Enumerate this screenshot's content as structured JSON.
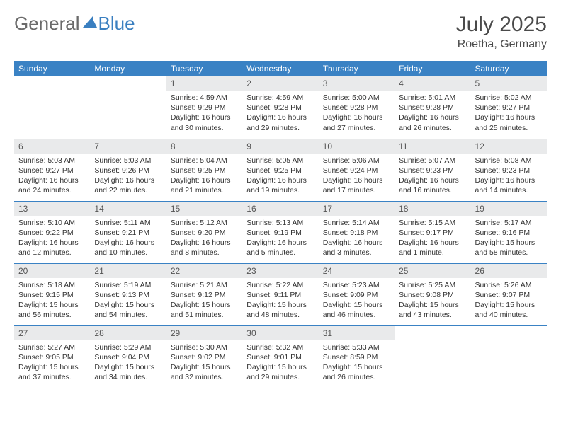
{
  "brand": {
    "part1": "General",
    "part2": "Blue"
  },
  "title": "July 2025",
  "location": "Roetha, Germany",
  "colors": {
    "header_bg": "#3a82c4",
    "daynum_bg": "#e9eaeb",
    "border": "#3a82c4"
  },
  "dayNames": [
    "Sunday",
    "Monday",
    "Tuesday",
    "Wednesday",
    "Thursday",
    "Friday",
    "Saturday"
  ],
  "weeks": [
    [
      null,
      null,
      {
        "n": "1",
        "sr": "4:59 AM",
        "ss": "9:29 PM",
        "dl": "16 hours and 30 minutes."
      },
      {
        "n": "2",
        "sr": "4:59 AM",
        "ss": "9:28 PM",
        "dl": "16 hours and 29 minutes."
      },
      {
        "n": "3",
        "sr": "5:00 AM",
        "ss": "9:28 PM",
        "dl": "16 hours and 27 minutes."
      },
      {
        "n": "4",
        "sr": "5:01 AM",
        "ss": "9:28 PM",
        "dl": "16 hours and 26 minutes."
      },
      {
        "n": "5",
        "sr": "5:02 AM",
        "ss": "9:27 PM",
        "dl": "16 hours and 25 minutes."
      }
    ],
    [
      {
        "n": "6",
        "sr": "5:03 AM",
        "ss": "9:27 PM",
        "dl": "16 hours and 24 minutes."
      },
      {
        "n": "7",
        "sr": "5:03 AM",
        "ss": "9:26 PM",
        "dl": "16 hours and 22 minutes."
      },
      {
        "n": "8",
        "sr": "5:04 AM",
        "ss": "9:25 PM",
        "dl": "16 hours and 21 minutes."
      },
      {
        "n": "9",
        "sr": "5:05 AM",
        "ss": "9:25 PM",
        "dl": "16 hours and 19 minutes."
      },
      {
        "n": "10",
        "sr": "5:06 AM",
        "ss": "9:24 PM",
        "dl": "16 hours and 17 minutes."
      },
      {
        "n": "11",
        "sr": "5:07 AM",
        "ss": "9:23 PM",
        "dl": "16 hours and 16 minutes."
      },
      {
        "n": "12",
        "sr": "5:08 AM",
        "ss": "9:23 PM",
        "dl": "16 hours and 14 minutes."
      }
    ],
    [
      {
        "n": "13",
        "sr": "5:10 AM",
        "ss": "9:22 PM",
        "dl": "16 hours and 12 minutes."
      },
      {
        "n": "14",
        "sr": "5:11 AM",
        "ss": "9:21 PM",
        "dl": "16 hours and 10 minutes."
      },
      {
        "n": "15",
        "sr": "5:12 AM",
        "ss": "9:20 PM",
        "dl": "16 hours and 8 minutes."
      },
      {
        "n": "16",
        "sr": "5:13 AM",
        "ss": "9:19 PM",
        "dl": "16 hours and 5 minutes."
      },
      {
        "n": "17",
        "sr": "5:14 AM",
        "ss": "9:18 PM",
        "dl": "16 hours and 3 minutes."
      },
      {
        "n": "18",
        "sr": "5:15 AM",
        "ss": "9:17 PM",
        "dl": "16 hours and 1 minute."
      },
      {
        "n": "19",
        "sr": "5:17 AM",
        "ss": "9:16 PM",
        "dl": "15 hours and 58 minutes."
      }
    ],
    [
      {
        "n": "20",
        "sr": "5:18 AM",
        "ss": "9:15 PM",
        "dl": "15 hours and 56 minutes."
      },
      {
        "n": "21",
        "sr": "5:19 AM",
        "ss": "9:13 PM",
        "dl": "15 hours and 54 minutes."
      },
      {
        "n": "22",
        "sr": "5:21 AM",
        "ss": "9:12 PM",
        "dl": "15 hours and 51 minutes."
      },
      {
        "n": "23",
        "sr": "5:22 AM",
        "ss": "9:11 PM",
        "dl": "15 hours and 48 minutes."
      },
      {
        "n": "24",
        "sr": "5:23 AM",
        "ss": "9:09 PM",
        "dl": "15 hours and 46 minutes."
      },
      {
        "n": "25",
        "sr": "5:25 AM",
        "ss": "9:08 PM",
        "dl": "15 hours and 43 minutes."
      },
      {
        "n": "26",
        "sr": "5:26 AM",
        "ss": "9:07 PM",
        "dl": "15 hours and 40 minutes."
      }
    ],
    [
      {
        "n": "27",
        "sr": "5:27 AM",
        "ss": "9:05 PM",
        "dl": "15 hours and 37 minutes."
      },
      {
        "n": "28",
        "sr": "5:29 AM",
        "ss": "9:04 PM",
        "dl": "15 hours and 34 minutes."
      },
      {
        "n": "29",
        "sr": "5:30 AM",
        "ss": "9:02 PM",
        "dl": "15 hours and 32 minutes."
      },
      {
        "n": "30",
        "sr": "5:32 AM",
        "ss": "9:01 PM",
        "dl": "15 hours and 29 minutes."
      },
      {
        "n": "31",
        "sr": "5:33 AM",
        "ss": "8:59 PM",
        "dl": "15 hours and 26 minutes."
      },
      null,
      null
    ]
  ],
  "labels": {
    "sunrise": "Sunrise:",
    "sunset": "Sunset:",
    "daylight": "Daylight:"
  }
}
